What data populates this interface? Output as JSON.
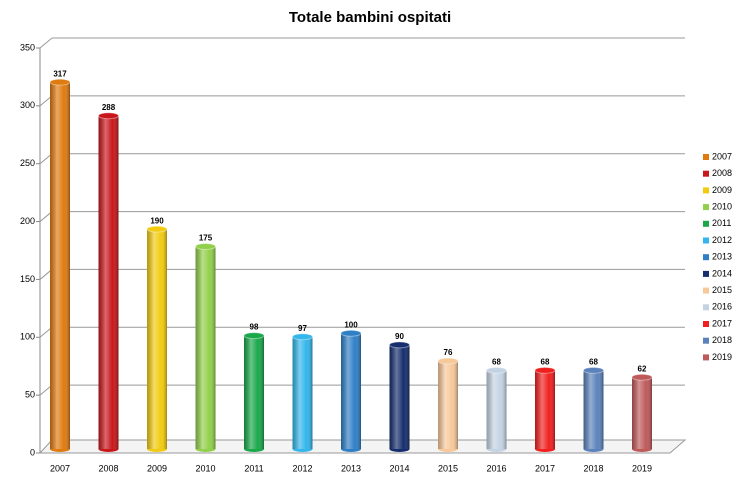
{
  "chart_data": {
    "type": "bar",
    "title": "Totale bambini ospitati",
    "categories": [
      "2007",
      "2008",
      "2009",
      "2010",
      "2011",
      "2012",
      "2013",
      "2014",
      "2015",
      "2016",
      "2017",
      "2018",
      "2019"
    ],
    "values": [
      317,
      288,
      190,
      175,
      98,
      97,
      100,
      90,
      76,
      68,
      68,
      68,
      62
    ],
    "colors": [
      "#e07b10",
      "#c8161b",
      "#f2cb10",
      "#92cf4a",
      "#18a84a",
      "#33b6ec",
      "#2f7fc6",
      "#162e6e",
      "#f7c89a",
      "#c4d3e4",
      "#f0201f",
      "#5b82bb",
      "#bf5a5b"
    ],
    "ylim": [
      0,
      350
    ],
    "yticks": [
      0,
      50,
      100,
      150,
      200,
      250,
      300,
      350
    ],
    "grid": true,
    "legend": "right",
    "style": "cylinder"
  }
}
